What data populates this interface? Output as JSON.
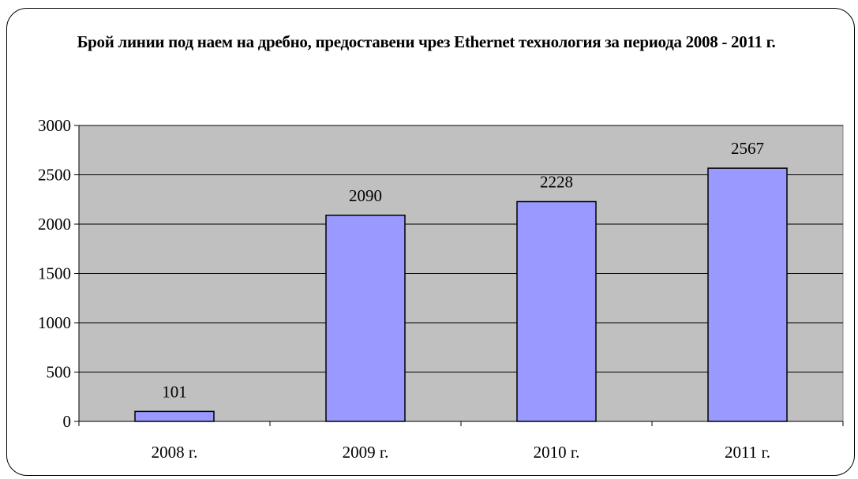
{
  "chart_data": {
    "type": "bar",
    "title": "Брой линии под наем на дребно, предоставени чрез Ethernet технология за периода 2008 - 2011 г.",
    "categories": [
      "2008 г.",
      "2009 г.",
      "2010 г.",
      "2011 г."
    ],
    "values": [
      101,
      2090,
      2228,
      2567
    ],
    "data_labels": [
      "101",
      "2090",
      "2228",
      "2567"
    ],
    "xlabel": "",
    "ylabel": "",
    "ylim": [
      0,
      3000
    ],
    "yticks": [
      0,
      500,
      1000,
      1500,
      2000,
      2500,
      3000
    ],
    "ytick_labels": [
      "0",
      "500",
      "1000",
      "1500",
      "2000",
      "2500",
      "3000"
    ],
    "grid": true,
    "legend": "none",
    "colors": {
      "bar_fill": "#9999ff",
      "bar_stroke": "#000000",
      "plot_background": "#c0c0c0",
      "gridline": "#000000"
    }
  }
}
